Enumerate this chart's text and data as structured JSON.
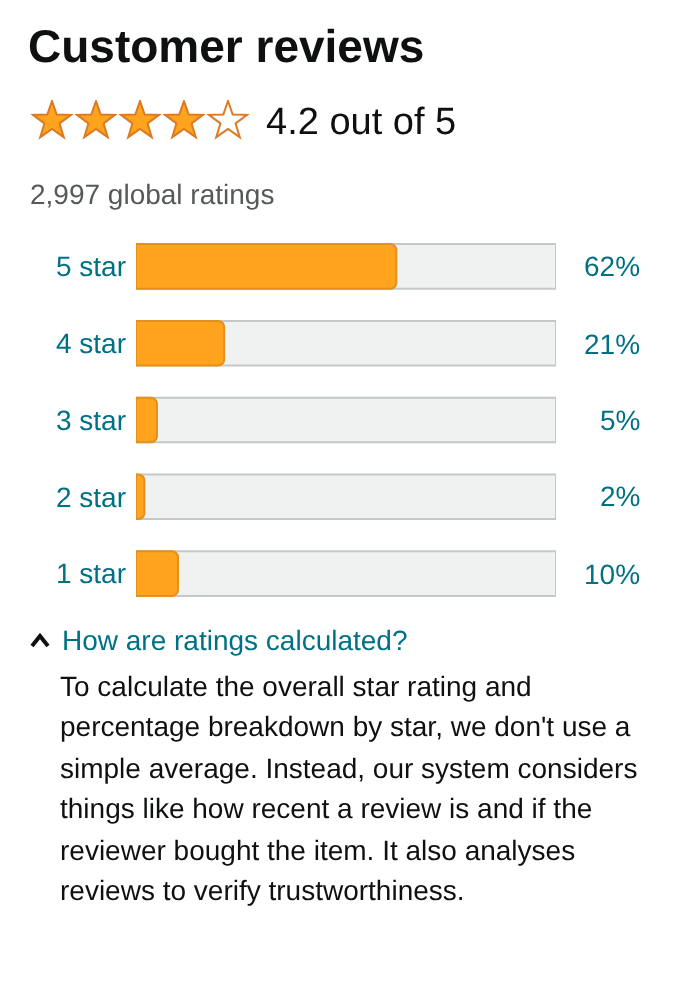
{
  "chart_data": {
    "type": "bar",
    "orientation": "horizontal",
    "title": "Customer reviews",
    "subtitle": "4.2 out of 5",
    "categories": [
      "5 star",
      "4 star",
      "3 star",
      "2 star",
      "1 star"
    ],
    "values": [
      62,
      21,
      5,
      2,
      10
    ],
    "value_labels": [
      "62%",
      "21%",
      "5%",
      "2%",
      "10%"
    ],
    "color": "#ffa41c",
    "xlim": [
      0,
      100
    ],
    "tick_labels": "y",
    "grid": false,
    "annotations": [
      "2,997 global ratings",
      "How are ratings calculated?",
      "To calculate the overall star rating and percentage breakdown by star, we don't use a simple average. Instead, our system considers things like how recent a review is and if the reviewer bought the item. It also analyses reviews to verify trustworthiness."
    ]
  }
}
